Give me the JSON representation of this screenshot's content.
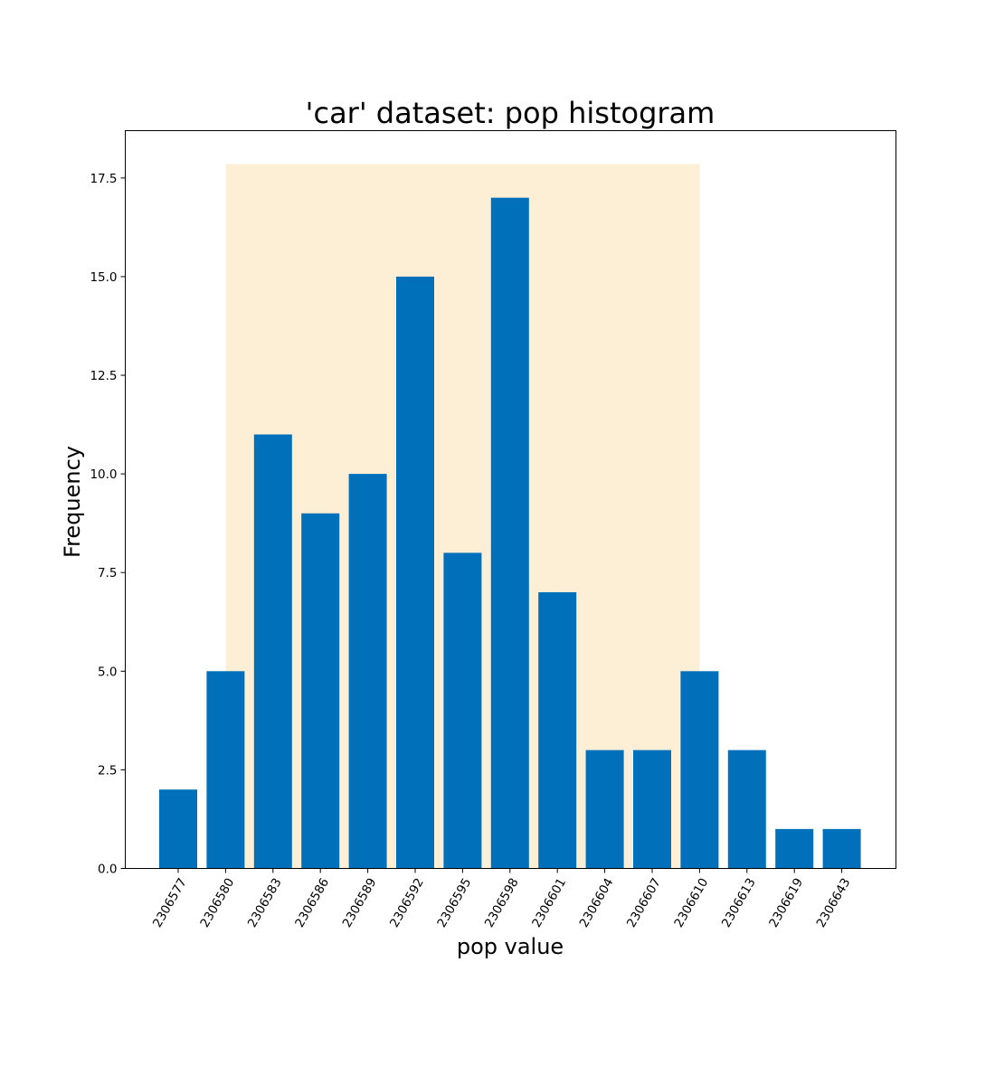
{
  "chart_data": {
    "type": "bar",
    "title": "'car' dataset: pop histogram",
    "xlabel": "pop value",
    "ylabel": "Frequency",
    "categories": [
      "2306577",
      "2306580",
      "2306583",
      "2306586",
      "2306589",
      "2306592",
      "2306595",
      "2306598",
      "2306601",
      "2306604",
      "2306607",
      "2306610",
      "2306613",
      "2306619",
      "2306643"
    ],
    "values": [
      2,
      5,
      11,
      9,
      10,
      15,
      8,
      17,
      7,
      3,
      3,
      5,
      3,
      1,
      1
    ],
    "ylim": [
      0,
      18.7
    ],
    "yticks": [
      "0.0",
      "2.5",
      "5.0",
      "7.5",
      "10.0",
      "12.5",
      "15.0",
      "17.5"
    ],
    "ytick_values": [
      0,
      2.5,
      5,
      7.5,
      10,
      12.5,
      15,
      17.5
    ],
    "xtick_rotation_deg": 60,
    "bar_color": "#0070bb",
    "highlight_band": {
      "from_category": "2306580",
      "to_category": "2306610",
      "y_top": 17.85,
      "color": "#fdefd6"
    },
    "grid": false,
    "legend": "none"
  }
}
